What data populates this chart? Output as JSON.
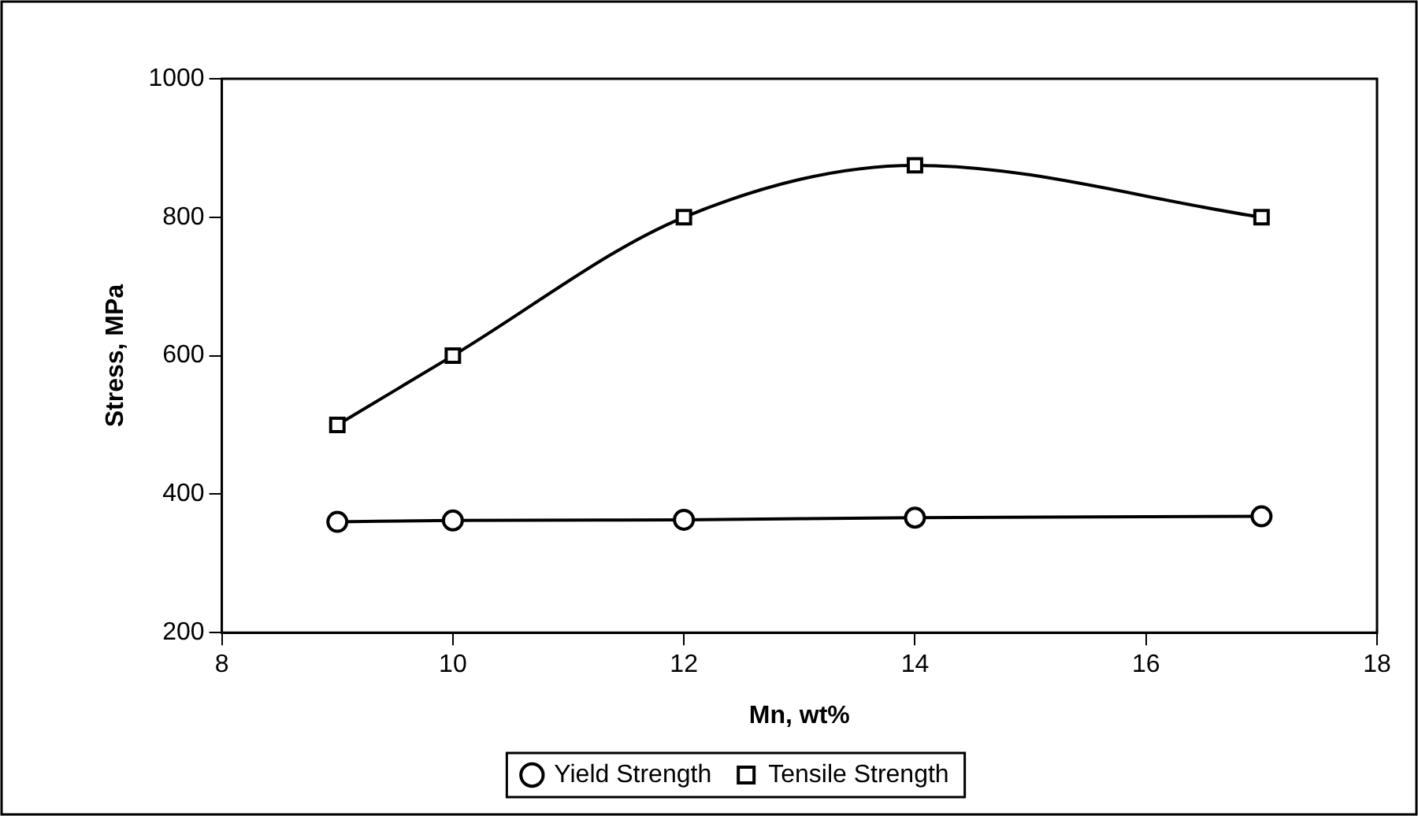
{
  "chart_data": {
    "type": "line",
    "xlabel": "Mn, wt%",
    "ylabel": "Stress, MPa",
    "x": [
      9,
      10,
      12,
      14,
      17
    ],
    "series": [
      {
        "name": "Yield Strength",
        "color": "#000000",
        "marker": "circle",
        "values": [
          360,
          362,
          363,
          366,
          368
        ]
      },
      {
        "name": "Tensile Strength",
        "color": "#000000",
        "marker": "square",
        "values": [
          500,
          600,
          800,
          875,
          800
        ]
      }
    ],
    "xlim": [
      8,
      18
    ],
    "xticks": [
      8,
      10,
      12,
      14,
      16,
      18
    ],
    "ylim": [
      200,
      1000
    ],
    "yticks": [
      200,
      400,
      600,
      800,
      1000
    ],
    "grid": false,
    "legend": "bottom",
    "line_style": "solid"
  }
}
